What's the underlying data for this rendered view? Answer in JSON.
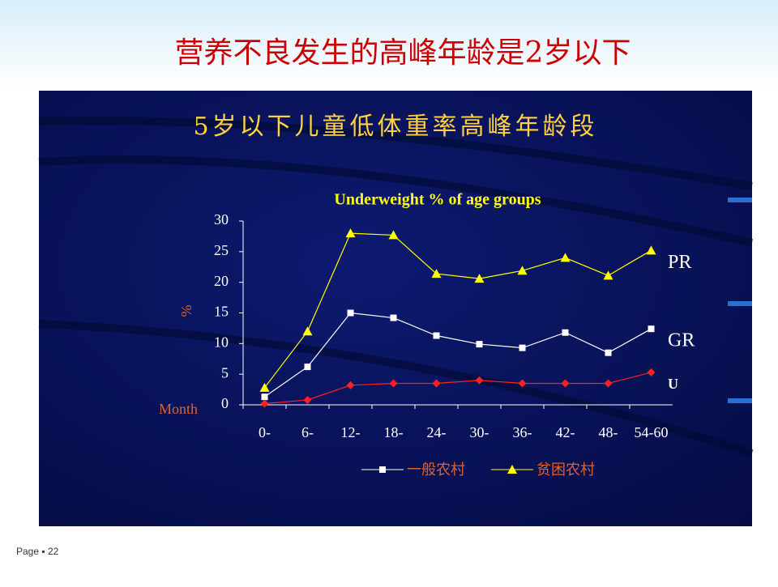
{
  "slide_title": "营养不良发生的高峰年龄是2岁以下",
  "header": "5岁以下儿童低体重率高峰年龄段",
  "page": "Page ▪ 22",
  "chart_data": {
    "type": "line",
    "title": "Underweight % of age groups",
    "y_label": "%",
    "x_label": "Month",
    "categories": [
      "0-",
      "6-",
      "12-",
      "18-",
      "24-",
      "30-",
      "36-",
      "42-",
      "48-",
      "54-60"
    ],
    "series": [
      {
        "name": "一般农村",
        "color": "#ffffff",
        "marker": "square",
        "end_label": "GR",
        "values": [
          1.3,
          6.2,
          15,
          14.2,
          11.3,
          9.9,
          9.3,
          11.8,
          8.5,
          12.4
        ]
      },
      {
        "name": "贫困农村",
        "color": "#ffff00",
        "marker": "triangle",
        "end_label": "PR",
        "values": [
          2.8,
          12,
          28,
          27.7,
          21.4,
          20.6,
          21.9,
          24,
          21.1,
          25.2
        ]
      },
      {
        "color": "#ff2020",
        "marker": "diamond",
        "end_label": "U",
        "values": [
          0.2,
          0.8,
          3.2,
          3.5,
          3.5,
          4,
          3.5,
          3.5,
          3.5,
          5.3
        ]
      }
    ],
    "ylim": [
      0,
      30
    ],
    "yticks": [
      0,
      5,
      10,
      15,
      20,
      25,
      30
    ],
    "grid": false
  }
}
